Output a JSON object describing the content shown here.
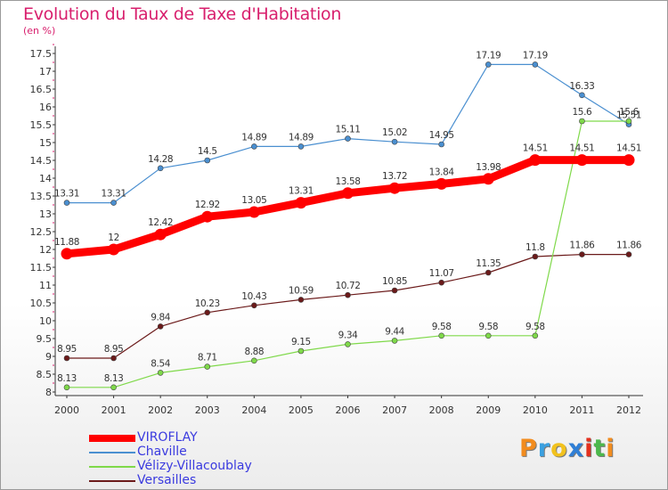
{
  "chart_data": {
    "type": "line",
    "title": "Evolution du Taux de Taxe d'Habitation",
    "subtitle": "(en %)",
    "x": [
      "2000",
      "2001",
      "2002",
      "2003",
      "2004",
      "2005",
      "2006",
      "2007",
      "2008",
      "2009",
      "2010",
      "2011",
      "2012"
    ],
    "ylim": [
      8,
      17.5
    ],
    "yticks": [
      "8",
      "8.5",
      "9",
      "9.5",
      "10",
      "10.5",
      "11",
      "11.5",
      "12",
      "12.5",
      "13",
      "13.5",
      "14",
      "14.5",
      "15",
      "15.5",
      "16",
      "16.5",
      "17",
      "17.5"
    ],
    "grid": false,
    "legend_position": "bottom-left",
    "series": [
      {
        "name": "VIROFLAY",
        "color": "#ff0000",
        "values": [
          11.88,
          12,
          12.42,
          12.92,
          13.05,
          13.31,
          13.58,
          13.72,
          13.84,
          13.98,
          14.51,
          14.51,
          14.51
        ],
        "labels": [
          "11.88",
          "12",
          "12.42",
          "12.92",
          "13.05",
          "13.31",
          "13.58",
          "13.72",
          "13.84",
          "13.98",
          "14.51",
          "14.51",
          "14.51"
        ]
      },
      {
        "name": "Chaville",
        "color": "#4a8fd0",
        "values": [
          13.31,
          13.31,
          14.28,
          14.5,
          14.89,
          14.89,
          15.11,
          15.02,
          14.95,
          17.19,
          17.19,
          16.33,
          15.51
        ],
        "labels": [
          "13.31",
          "13.31",
          "14.28",
          "14.5",
          "14.89",
          "14.89",
          "15.11",
          "15.02",
          "14.95",
          "17.19",
          "17.19",
          "16.33",
          "15.51"
        ]
      },
      {
        "name": "Vélizy-Villacoublay",
        "color": "#7fd94a",
        "values": [
          8.13,
          8.13,
          8.54,
          8.71,
          8.88,
          9.15,
          9.34,
          9.44,
          9.58,
          9.58,
          9.58,
          15.6,
          15.6
        ],
        "labels": [
          "8.13",
          "8.13",
          "8.54",
          "8.71",
          "8.88",
          "9.15",
          "9.34",
          "9.44",
          "9.58",
          "9.58",
          "9.58",
          "15.6",
          "15.6"
        ]
      },
      {
        "name": "Versailles",
        "color": "#6b1a1a",
        "values": [
          8.95,
          8.95,
          9.84,
          10.23,
          10.43,
          10.59,
          10.72,
          10.85,
          11.07,
          11.35,
          11.8,
          11.86,
          11.86
        ],
        "labels": [
          "8.95",
          "8.95",
          "9.84",
          "10.23",
          "10.43",
          "10.59",
          "10.72",
          "10.85",
          "11.07",
          "11.35",
          "11.8",
          "11.86",
          "11.86"
        ]
      }
    ]
  },
  "logo": {
    "text": [
      "P",
      "r",
      "o",
      "x",
      "i",
      "t",
      "i"
    ],
    "colors": [
      "#f28c1e",
      "#3aa0e0",
      "#f2c21e",
      "#2f7fd6",
      "#e2301e",
      "#4cb84c",
      "#f28c1e"
    ]
  }
}
